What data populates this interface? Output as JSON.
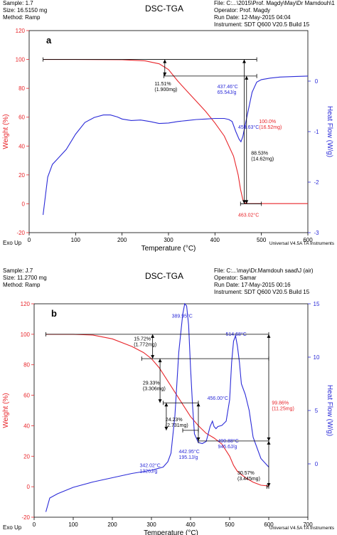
{
  "chart_data": [
    {
      "type": "line",
      "panel_label": "a",
      "title": "DSC-TGA",
      "header_left": [
        "Sample: 1.7",
        "Size: 16.5150 mg",
        "Method: Ramp"
      ],
      "header_right": [
        "File: C:...\\2015\\Prof. Magdy\\May\\Dr Mamdouh\\1",
        "Operator: Prof. Magdy",
        "Run Date: 12-May-2015 04:04",
        "Instrument: SDT Q600 V20.5 Build 15"
      ],
      "xlabel": "Temperature (°C)",
      "ylabel": "Weight (%)",
      "y2label": "Heat Flow (W/g)",
      "footer_left": "Exo Up",
      "footer_right": "Universal V4.5A TA Instruments",
      "xlim": [
        0,
        600
      ],
      "ylim": [
        -20,
        120
      ],
      "y2lim": [
        -3,
        1
      ],
      "xticks": [
        "0",
        "100",
        "200",
        "300",
        "400",
        "500",
        "600"
      ],
      "yticks": [
        "-20",
        "0",
        "20",
        "40",
        "60",
        "80",
        "100",
        "120"
      ],
      "y2ticks": [
        "-3",
        "-2",
        "-1",
        "0"
      ],
      "colors": {
        "weight": "#e8262b",
        "heat": "#2b2bd8",
        "axis_left": "#e8262b",
        "axis_right": "#2b2bd8",
        "marker": "#000000"
      },
      "series": [
        {
          "axis": "left",
          "x": [
            30,
            100,
            200,
            250,
            280,
            300,
            320,
            340,
            360,
            380,
            400,
            420,
            440,
            450,
            455,
            460,
            463,
            470,
            500,
            600
          ],
          "values": [
            100,
            100,
            99.8,
            99,
            97,
            93,
            85,
            78,
            71,
            64,
            56,
            47,
            33,
            20,
            10,
            3,
            0.6,
            0.2,
            0.1,
            0.1
          ]
        },
        {
          "axis": "right",
          "x": [
            30,
            40,
            50,
            60,
            80,
            100,
            120,
            140,
            160,
            175,
            190,
            200,
            220,
            240,
            260,
            280,
            300,
            320,
            340,
            360,
            380,
            400,
            420,
            430,
            437,
            445,
            452,
            456,
            460,
            470,
            480,
            490,
            500,
            520,
            540,
            570,
            600
          ],
          "values": [
            -2.65,
            -1.9,
            -1.65,
            -1.55,
            -1.35,
            -1.05,
            -0.82,
            -0.72,
            -0.67,
            -0.67,
            -0.71,
            -0.75,
            -0.78,
            -0.77,
            -0.8,
            -0.84,
            -0.83,
            -0.8,
            -0.78,
            -0.76,
            -0.75,
            -0.74,
            -0.74,
            -0.76,
            -0.8,
            -1.0,
            -1.15,
            -1.2,
            -1.1,
            -0.65,
            -0.22,
            -0.02,
            0.03,
            0.06,
            0.08,
            0.09,
            0.1
          ]
        }
      ],
      "markers": {
        "horizontal": [
          {
            "x_from": 30,
            "x_to": 490,
            "y": 100
          },
          {
            "x_from": 290,
            "x_to": 490,
            "y": 88.5
          },
          {
            "x_from": 455,
            "x_to": 500,
            "y": 0
          }
        ],
        "vertical": [
          {
            "x": 292,
            "y_from": 100,
            "y_to": 88.5
          },
          {
            "x": 463,
            "y_from": 100,
            "y_to": 0
          },
          {
            "x": 468,
            "y_from": 88.5,
            "y_to": 0
          }
        ]
      },
      "annotations": [
        {
          "lines": [
            "11.51%",
            "(1.900mg)"
          ],
          "color": "#000000",
          "x": 270,
          "y": 82
        },
        {
          "lines": [
            "437.46°C",
            "65.54J/g"
          ],
          "color": "#2b2bd8",
          "x": 405,
          "y": 80
        },
        {
          "lines": [
            "459.63°C"
          ],
          "color": "#2b2bd8",
          "x": 450,
          "y": 52
        },
        {
          "lines": [
            "100.0%",
            "(16.52mg)"
          ],
          "color": "#e8262b",
          "x": 495,
          "y": 56
        },
        {
          "lines": [
            "88.53%",
            "(14.62mg)"
          ],
          "color": "#000000",
          "x": 478,
          "y": 34
        },
        {
          "lines": [
            "463.02°C"
          ],
          "color": "#e8262b",
          "x": 450,
          "y": -9
        }
      ]
    },
    {
      "type": "line",
      "panel_label": "b",
      "title": "DSC-TGA",
      "header_left": [
        "Sample: J.7",
        "Size: 11.2700 mg",
        "Method: Ramp"
      ],
      "header_right": [
        "File: C:...\\may\\Dr.Mamdouh saad\\J (air)",
        "Operator: Samar",
        "Run Date: 17-May-2015 00:16",
        "Instrument: SDT Q600 V20.5 Build 15"
      ],
      "xlabel": "Temperature (°C)",
      "ylabel": "Weight (%)",
      "y2label": "Heat Flow (W/g)",
      "footer_left": "Exo Up",
      "footer_right": "Universal V4.5A TA Instruments",
      "xlim": [
        0,
        700
      ],
      "ylim": [
        -20,
        120
      ],
      "y2lim": [
        -5,
        15
      ],
      "xticks": [
        "0",
        "100",
        "200",
        "300",
        "400",
        "500",
        "600",
        "700"
      ],
      "yticks": [
        "-20",
        "0",
        "20",
        "40",
        "60",
        "80",
        "100",
        "120"
      ],
      "y2ticks": [
        "0",
        "5",
        "10",
        "15"
      ],
      "colors": {
        "weight": "#e8262b",
        "heat": "#2b2bd8",
        "axis_left": "#e8262b",
        "axis_right": "#2b2bd8",
        "marker": "#000000"
      },
      "series": [
        {
          "axis": "left",
          "x": [
            30,
            100,
            150,
            200,
            250,
            280,
            300,
            320,
            340,
            360,
            380,
            400,
            420,
            440,
            460,
            480,
            500,
            510,
            520,
            540,
            560,
            580,
            600
          ],
          "values": [
            100,
            100,
            99.5,
            97,
            92,
            88,
            84,
            78,
            70,
            62,
            54,
            46,
            40,
            35,
            32,
            28,
            20,
            14,
            10,
            6,
            3,
            1,
            0.5
          ]
        },
        {
          "axis": "right",
          "x": [
            30,
            40,
            60,
            100,
            150,
            200,
            250,
            300,
            330,
            342,
            350,
            360,
            370,
            380,
            385,
            390,
            395,
            400,
            405,
            410,
            420,
            430,
            440,
            443,
            450,
            456,
            460,
            465,
            470,
            480,
            491,
            500,
            505,
            510,
            515,
            520,
            525,
            530,
            540,
            550,
            560,
            580,
            600
          ],
          "values": [
            -4.5,
            -3.2,
            -2.8,
            -2.2,
            -1.7,
            -1.3,
            -0.9,
            -0.6,
            -0.3,
            0.2,
            1.0,
            4.5,
            10.5,
            14.0,
            15.0,
            14.8,
            13.0,
            9.0,
            5.5,
            2.8,
            2.0,
            1.9,
            2.1,
            2.5,
            3.5,
            4.0,
            3.5,
            3.3,
            3.5,
            3.6,
            4.0,
            6.0,
            9.5,
            11.5,
            12.0,
            11.0,
            9.5,
            7.5,
            6.5,
            5.0,
            2.5,
            0.5,
            -0.3
          ]
        }
      ],
      "markers": {
        "horizontal": [
          {
            "x_from": 30,
            "x_to": 600,
            "y": 100
          },
          {
            "x_from": 275,
            "x_to": 600,
            "y": 84
          },
          {
            "x_from": 330,
            "x_to": 420,
            "y": 55
          },
          {
            "x_from": 380,
            "x_to": 420,
            "y": 37
          },
          {
            "x_from": 420,
            "x_to": 600,
            "y": 30
          },
          {
            "x_from": 595,
            "x_to": 600,
            "y": 0
          }
        ],
        "vertical": [
          {
            "x": 303,
            "y_from": 100,
            "y_to": 84
          },
          {
            "x": 322,
            "y_from": 84,
            "y_to": 55
          },
          {
            "x": 338,
            "y_from": 55,
            "y_to": 37
          },
          {
            "x": 420,
            "y_from": 55,
            "y_to": 30
          },
          {
            "x": 600,
            "y_from": 100,
            "y_to": 30
          },
          {
            "x": 600,
            "y_from": 30,
            "y_to": 0
          }
        ]
      },
      "annotations": [
        {
          "lines": [
            "15.72%",
            "(1.772mg)"
          ],
          "color": "#000000",
          "x": 255,
          "y": 96
        },
        {
          "lines": [
            "389.95°C"
          ],
          "color": "#2b2bd8",
          "x": 352,
          "y": 111
        },
        {
          "lines": [
            "514.68°C"
          ],
          "color": "#2b2bd8",
          "x": 490,
          "y": 99
        },
        {
          "lines": [
            "29.33%",
            "(3.306mg)"
          ],
          "color": "#000000",
          "x": 278,
          "y": 67
        },
        {
          "lines": [
            "456.00°C"
          ],
          "color": "#2b2bd8",
          "x": 443,
          "y": 57
        },
        {
          "lines": [
            "99.86%",
            "(11.25mg)"
          ],
          "color": "#e8262b",
          "x": 608,
          "y": 54
        },
        {
          "lines": [
            "24.23%",
            "(2.731mg)"
          ],
          "color": "#000000",
          "x": 336,
          "y": 43
        },
        {
          "lines": [
            "490.88°C",
            "945.6J/g"
          ],
          "color": "#2b2bd8",
          "x": 470,
          "y": 29
        },
        {
          "lines": [
            "442.95°C",
            "195.1J/g"
          ],
          "color": "#2b2bd8",
          "x": 370,
          "y": 22
        },
        {
          "lines": [
            "342.02°C",
            "1326J/g"
          ],
          "color": "#2b2bd8",
          "x": 270,
          "y": 13
        },
        {
          "lines": [
            "30.57%",
            "(3.445mg)"
          ],
          "color": "#000000",
          "x": 520,
          "y": 8
        }
      ]
    }
  ]
}
